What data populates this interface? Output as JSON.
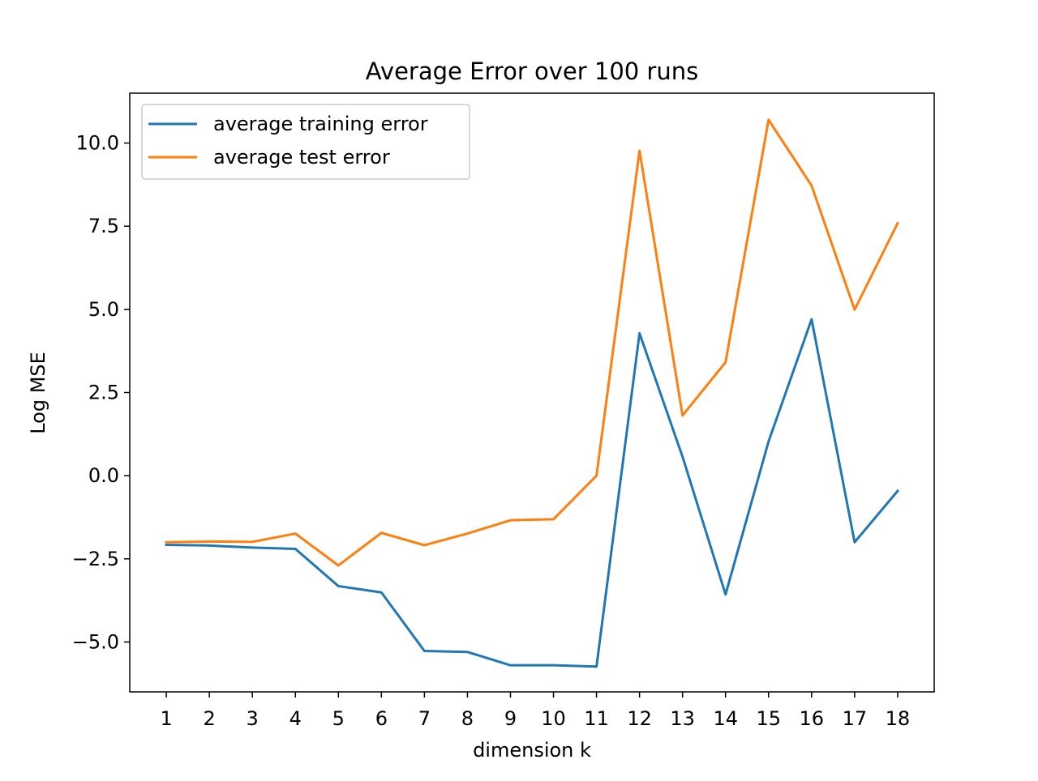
{
  "chart_data": {
    "type": "line",
    "title": "Average Error over 100 runs",
    "xlabel": "dimension k",
    "ylabel": "Log MSE",
    "x": [
      1,
      2,
      3,
      4,
      5,
      6,
      7,
      8,
      9,
      10,
      11,
      12,
      13,
      14,
      15,
      16,
      17,
      18
    ],
    "xticks": [
      "1",
      "2",
      "3",
      "4",
      "5",
      "6",
      "7",
      "8",
      "9",
      "10",
      "11",
      "12",
      "13",
      "14",
      "15",
      "16",
      "17",
      "18"
    ],
    "yticks": [
      -5.0,
      -2.5,
      0.0,
      2.5,
      5.0,
      7.5,
      10.0
    ],
    "ytick_labels": [
      "−5.0",
      "−2.5",
      "0.0",
      "2.5",
      "5.0",
      "7.5",
      "10.0"
    ],
    "xlim": [
      0.15,
      18.85
    ],
    "ylim": [
      -6.5,
      11.5
    ],
    "grid": false,
    "legend_position": "upper-left",
    "series": [
      {
        "name": "average training error",
        "color": "#1f77b4",
        "values": [
          -2.08,
          -2.1,
          -2.16,
          -2.2,
          -3.32,
          -3.51,
          -5.27,
          -5.3,
          -5.7,
          -5.7,
          -5.74,
          4.28,
          0.57,
          -3.57,
          1.03,
          4.7,
          -2.0,
          -0.46
        ]
      },
      {
        "name": "average test error",
        "color": "#ff7f0e",
        "values": [
          -2.0,
          -1.98,
          -1.99,
          -1.74,
          -2.7,
          -1.72,
          -2.09,
          -1.74,
          -1.34,
          -1.31,
          0.0,
          9.77,
          1.81,
          3.41,
          10.7,
          8.72,
          4.99,
          7.59
        ]
      }
    ]
  }
}
